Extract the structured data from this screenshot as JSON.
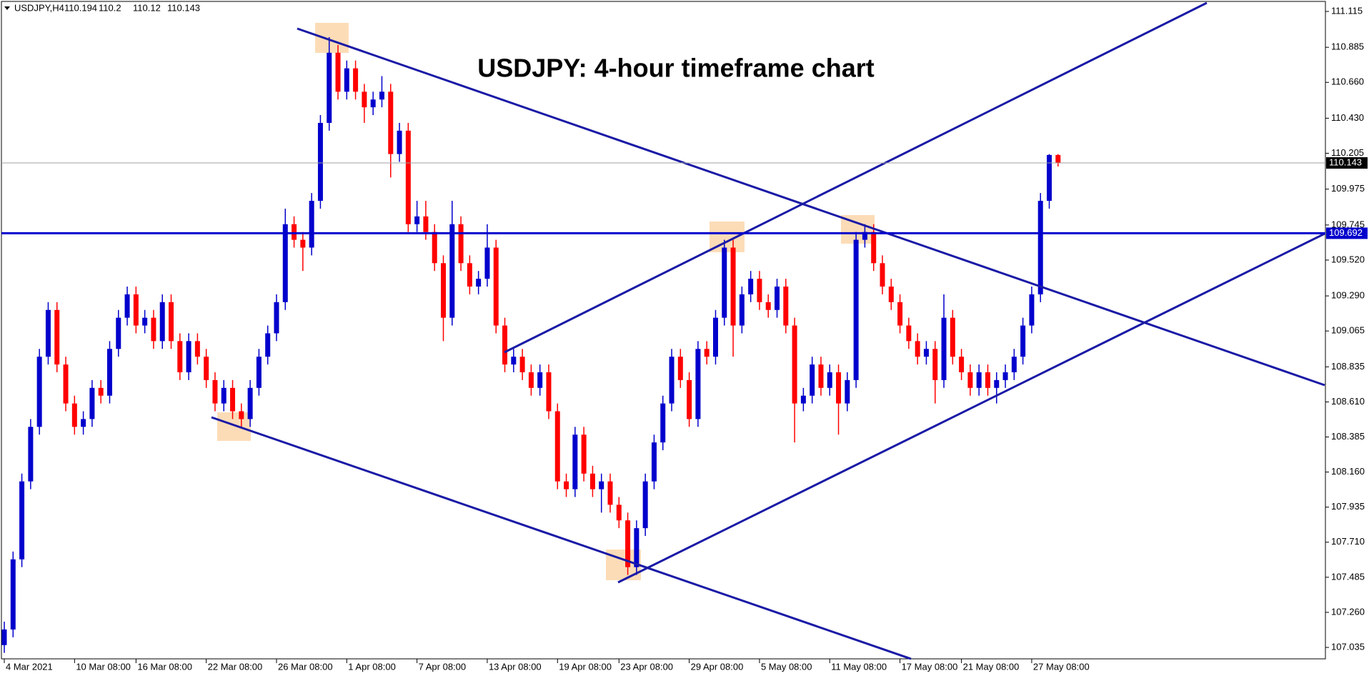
{
  "chart_data": {
    "type": "candlestick",
    "symbol": "USDJPY,H4",
    "title": "USDJPY: 4-hour timeframe chart",
    "up_color": "#0000cc",
    "down_color": "#ff0000",
    "categories": [
      "4 Mar 2021",
      null,
      null,
      null,
      null,
      null,
      null,
      null,
      "10 Mar 08:00",
      null,
      null,
      null,
      null,
      null,
      null,
      "16 Mar 08:00",
      null,
      null,
      null,
      null,
      null,
      null,
      null,
      "22 Mar 08:00",
      null,
      null,
      null,
      null,
      null,
      null,
      null,
      "26 Mar 08:00",
      null,
      null,
      null,
      null,
      null,
      null,
      null,
      "1 Apr 08:00",
      null,
      null,
      null,
      null,
      null,
      null,
      null,
      "7 Apr 08:00",
      null,
      null,
      null,
      null,
      null,
      null,
      null,
      "13 Apr 08:00",
      null,
      null,
      null,
      null,
      null,
      null,
      null,
      "19 Apr 08:00",
      null,
      null,
      null,
      null,
      null,
      null,
      "23 Apr 08:00",
      null,
      null,
      null,
      null,
      null,
      null,
      null,
      "29 Apr 08:00",
      null,
      null,
      null,
      null,
      null,
      null,
      null,
      "5 May 08:00",
      null,
      null,
      null,
      null,
      null,
      null,
      null,
      "11 May 08:00",
      null,
      null,
      null,
      null,
      null,
      null,
      null,
      "17 May 08:00",
      null,
      null,
      null,
      null,
      null,
      null,
      "21 May 08:00",
      null,
      null,
      null,
      null,
      null,
      null,
      null,
      "27 May 08:00",
      null,
      null,
      null
    ],
    "open": [
      107.05,
      107.15,
      107.6,
      108.1,
      108.45,
      108.9,
      109.2,
      108.85,
      108.6,
      108.45,
      108.5,
      108.7,
      108.65,
      108.95,
      109.15,
      109.3,
      109.1,
      109.15,
      109.0,
      109.25,
      109.0,
      108.8,
      109.0,
      108.9,
      108.75,
      108.6,
      108.7,
      108.55,
      108.5,
      108.7,
      108.9,
      109.05,
      109.25,
      109.75,
      109.65,
      109.6,
      109.9,
      110.4,
      110.85,
      110.6,
      110.75,
      110.6,
      110.5,
      110.55,
      110.6,
      110.2,
      110.35,
      109.75,
      109.8,
      109.7,
      109.5,
      109.15,
      109.75,
      109.5,
      109.35,
      109.4,
      109.6,
      109.1,
      108.85,
      108.9,
      108.8,
      108.7,
      108.8,
      108.55,
      108.1,
      108.05,
      108.4,
      108.15,
      108.05,
      108.1,
      107.95,
      107.85,
      107.55,
      107.8,
      108.1,
      108.35,
      108.6,
      108.9,
      108.75,
      108.5,
      108.95,
      108.9,
      109.15,
      109.6,
      109.1,
      109.3,
      109.4,
      109.25,
      109.2,
      109.35,
      109.1,
      108.6,
      108.65,
      108.85,
      108.7,
      108.8,
      108.6,
      108.75,
      109.65,
      109.7,
      109.5,
      109.35,
      109.25,
      109.1,
      109.0,
      108.9,
      108.95,
      108.75,
      109.15,
      108.9,
      108.8,
      108.7,
      108.8,
      108.7,
      108.75,
      108.8,
      108.9,
      109.1,
      109.3,
      109.9,
      110.194
    ],
    "high": [
      107.2,
      107.65,
      108.15,
      108.5,
      108.95,
      109.25,
      109.25,
      108.9,
      108.65,
      108.55,
      108.75,
      108.75,
      109.0,
      109.2,
      109.35,
      109.35,
      109.2,
      109.2,
      109.3,
      109.3,
      109.05,
      109.05,
      109.05,
      108.95,
      108.8,
      108.75,
      108.75,
      108.6,
      108.75,
      108.95,
      109.1,
      109.3,
      109.85,
      109.8,
      109.7,
      109.95,
      110.45,
      110.95,
      110.9,
      110.8,
      110.8,
      110.65,
      110.6,
      110.7,
      110.65,
      110.4,
      110.4,
      109.9,
      109.9,
      109.75,
      109.55,
      109.9,
      109.8,
      109.55,
      109.45,
      109.75,
      109.65,
      109.15,
      108.95,
      108.95,
      108.85,
      108.85,
      108.85,
      108.6,
      108.15,
      108.45,
      108.45,
      108.2,
      108.15,
      108.15,
      108.0,
      107.9,
      107.85,
      108.15,
      108.4,
      108.65,
      108.95,
      108.95,
      108.8,
      109.0,
      109.0,
      109.2,
      109.65,
      109.65,
      109.35,
      109.45,
      109.45,
      109.3,
      109.4,
      109.4,
      109.15,
      108.7,
      108.9,
      108.9,
      108.85,
      108.85,
      108.8,
      109.7,
      109.75,
      109.75,
      109.55,
      109.4,
      109.3,
      109.15,
      109.05,
      109.0,
      109.0,
      109.3,
      109.2,
      108.95,
      108.85,
      108.85,
      108.85,
      108.8,
      108.85,
      108.95,
      109.15,
      109.35,
      109.95,
      110.2,
      110.2
    ],
    "low": [
      107.0,
      107.1,
      107.55,
      108.05,
      108.4,
      108.85,
      108.8,
      108.55,
      108.4,
      108.4,
      108.45,
      108.6,
      108.6,
      108.9,
      109.1,
      109.05,
      109.05,
      108.95,
      108.95,
      108.95,
      108.75,
      108.75,
      108.85,
      108.7,
      108.55,
      108.55,
      108.5,
      108.45,
      108.45,
      108.65,
      108.85,
      109.0,
      109.2,
      109.6,
      109.45,
      109.55,
      109.85,
      110.35,
      110.55,
      110.55,
      110.55,
      110.4,
      110.45,
      110.5,
      110.05,
      110.15,
      109.7,
      109.7,
      109.65,
      109.45,
      109.0,
      109.1,
      109.45,
      109.3,
      109.3,
      109.35,
      109.05,
      108.8,
      108.8,
      108.75,
      108.65,
      108.65,
      108.5,
      108.05,
      108.0,
      108.0,
      108.1,
      108.0,
      107.9,
      107.9,
      107.8,
      107.5,
      107.5,
      107.75,
      108.05,
      108.3,
      108.55,
      108.7,
      108.45,
      108.45,
      108.85,
      108.85,
      109.1,
      108.9,
      109.05,
      109.25,
      109.2,
      109.15,
      109.15,
      109.05,
      108.35,
      108.55,
      108.6,
      108.65,
      108.65,
      108.4,
      108.55,
      108.7,
      109.6,
      109.45,
      109.3,
      109.2,
      109.05,
      108.95,
      108.85,
      108.85,
      108.6,
      108.7,
      108.85,
      108.75,
      108.65,
      108.65,
      108.65,
      108.6,
      108.7,
      108.75,
      108.85,
      109.05,
      109.25,
      109.85,
      110.12
    ],
    "close": [
      107.15,
      107.6,
      108.1,
      108.45,
      108.9,
      109.2,
      108.85,
      108.6,
      108.45,
      108.5,
      108.7,
      108.65,
      108.95,
      109.15,
      109.3,
      109.1,
      109.15,
      109.0,
      109.25,
      109.0,
      108.8,
      109.0,
      108.9,
      108.75,
      108.6,
      108.7,
      108.55,
      108.5,
      108.7,
      108.9,
      109.05,
      109.25,
      109.75,
      109.65,
      109.6,
      109.9,
      110.4,
      110.85,
      110.6,
      110.75,
      110.6,
      110.5,
      110.55,
      110.6,
      110.2,
      110.35,
      109.75,
      109.8,
      109.7,
      109.5,
      109.15,
      109.75,
      109.5,
      109.35,
      109.4,
      109.6,
      109.1,
      108.85,
      108.9,
      108.8,
      108.7,
      108.8,
      108.55,
      108.1,
      108.05,
      108.4,
      108.15,
      108.05,
      108.1,
      107.95,
      107.85,
      107.55,
      107.8,
      108.1,
      108.35,
      108.6,
      108.9,
      108.75,
      108.5,
      108.95,
      108.9,
      109.15,
      109.6,
      109.1,
      109.3,
      109.4,
      109.25,
      109.2,
      109.35,
      109.1,
      108.6,
      108.65,
      108.85,
      108.7,
      108.8,
      108.6,
      108.75,
      109.65,
      109.7,
      109.5,
      109.35,
      109.25,
      109.1,
      109.0,
      108.9,
      108.95,
      108.75,
      109.15,
      108.9,
      108.8,
      108.7,
      108.8,
      108.7,
      108.75,
      108.8,
      108.9,
      109.1,
      109.3,
      109.9,
      110.194,
      110.143
    ],
    "ylim": [
      107.035,
      111.115
    ],
    "yticks": [
      107.035,
      {
        "value": 107.26,
        "label": "107.260"
      },
      107.485,
      {
        "value": 107.71,
        "label": "107.710"
      },
      107.935,
      {
        "value": 108.16,
        "label": "108.160"
      },
      108.385,
      {
        "value": 108.61,
        "label": "108.610"
      },
      108.835,
      109.065,
      {
        "value": 109.29,
        "label": "109.290"
      },
      {
        "value": 109.52,
        "label": "109.520"
      },
      109.745,
      109.975,
      110.205,
      {
        "value": 110.43,
        "label": "110.430"
      },
      {
        "value": 110.66,
        "label": "110.660"
      },
      110.885,
      111.115
    ],
    "hlines": [
      {
        "value": 109.692,
        "color": "#0000cc"
      }
    ]
  }
}
